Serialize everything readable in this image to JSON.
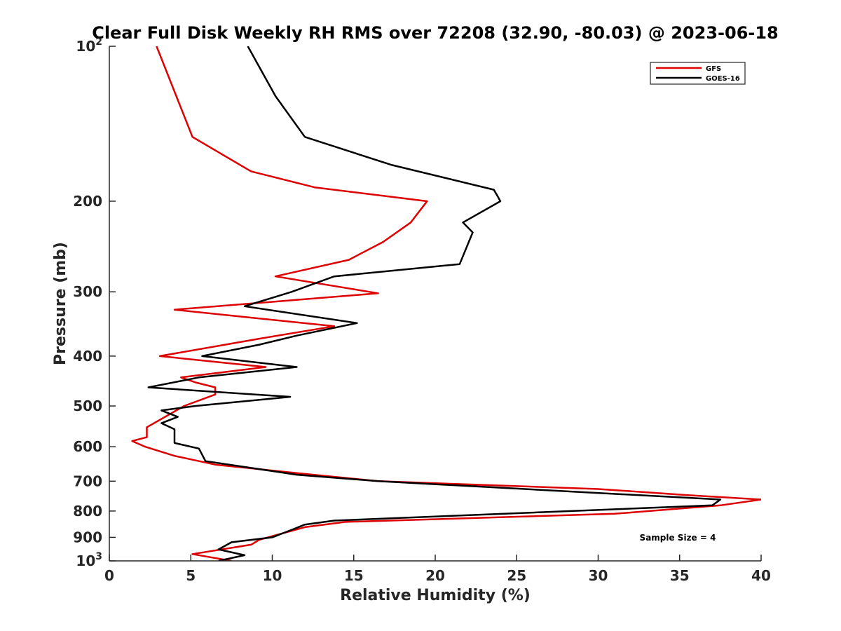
{
  "chart_data": {
    "type": "line",
    "title": "Clear Full Disk Weekly RH RMS over 72208 (32.90, -80.03) @ 2023-06-18",
    "xlabel": "Relative Humidity (%)",
    "ylabel": "Pressure (mb)",
    "xlim": [
      0,
      40
    ],
    "ylim": [
      100,
      1000
    ],
    "y_scale": "log",
    "y_reversed": true,
    "grid": false,
    "legend_placement": "top-right",
    "x_ticks": [
      0,
      5,
      10,
      15,
      20,
      25,
      30,
      35,
      40
    ],
    "x_tick_labels": [
      "0",
      "5",
      "10",
      "15",
      "20",
      "25",
      "30",
      "35",
      "40"
    ],
    "y_ticks": [
      {
        "value": 100,
        "base": "10",
        "exp": "2"
      },
      {
        "value": 200,
        "label": "200"
      },
      {
        "value": 300,
        "label": "300"
      },
      {
        "value": 400,
        "label": "400"
      },
      {
        "value": 500,
        "label": "500"
      },
      {
        "value": 600,
        "label": "600"
      },
      {
        "value": 700,
        "label": "700"
      },
      {
        "value": 800,
        "label": "800"
      },
      {
        "value": 900,
        "label": "900"
      },
      {
        "value": 1000,
        "base": "10",
        "exp": "3"
      }
    ],
    "annotation": "Sample Size = 4",
    "series": [
      {
        "name": "GFS",
        "color": "#dd0000",
        "points": [
          [
            2.9,
            100
          ],
          [
            5.1,
            150
          ],
          [
            8.7,
            175
          ],
          [
            12.6,
            188
          ],
          [
            19.5,
            200
          ],
          [
            18.5,
            220
          ],
          [
            16.8,
            240
          ],
          [
            14.7,
            260
          ],
          [
            10.2,
            280
          ],
          [
            16.5,
            302
          ],
          [
            4.0,
            325
          ],
          [
            13.8,
            350
          ],
          [
            9.2,
            370
          ],
          [
            3.1,
            400
          ],
          [
            9.6,
            420
          ],
          [
            4.4,
            440
          ],
          [
            5.3,
            450
          ],
          [
            6.5,
            460
          ],
          [
            6.5,
            475
          ],
          [
            4.6,
            500
          ],
          [
            2.3,
            550
          ],
          [
            2.3,
            575
          ],
          [
            1.4,
            585
          ],
          [
            2.2,
            600
          ],
          [
            4.0,
            625
          ],
          [
            6.5,
            650
          ],
          [
            11.5,
            675
          ],
          [
            16.5,
            700
          ],
          [
            30.0,
            725
          ],
          [
            35.5,
            745
          ],
          [
            40.0,
            760
          ],
          [
            37.5,
            780
          ],
          [
            31.0,
            810
          ],
          [
            14.5,
            840
          ],
          [
            12.0,
            860
          ],
          [
            9.2,
            910
          ],
          [
            8.7,
            930
          ],
          [
            5.1,
            970
          ],
          [
            7.5,
            1000
          ]
        ]
      },
      {
        "name": "GOES-16",
        "color": "#000000",
        "points": [
          [
            8.5,
            100
          ],
          [
            10.2,
            125
          ],
          [
            12.0,
            150
          ],
          [
            17.3,
            170
          ],
          [
            23.6,
            190
          ],
          [
            24.0,
            200
          ],
          [
            21.7,
            220
          ],
          [
            22.3,
            230
          ],
          [
            21.5,
            265
          ],
          [
            13.8,
            280
          ],
          [
            11.2,
            300
          ],
          [
            8.3,
            320
          ],
          [
            15.2,
            345
          ],
          [
            11.5,
            365
          ],
          [
            9.2,
            380
          ],
          [
            5.7,
            400
          ],
          [
            11.5,
            420
          ],
          [
            5.5,
            440
          ],
          [
            2.4,
            460
          ],
          [
            11.1,
            480
          ],
          [
            5.3,
            500
          ],
          [
            3.2,
            510
          ],
          [
            4.2,
            525
          ],
          [
            3.2,
            540
          ],
          [
            4.0,
            555
          ],
          [
            4.0,
            590
          ],
          [
            5.5,
            605
          ],
          [
            5.9,
            640
          ],
          [
            11.5,
            680
          ],
          [
            16.5,
            700
          ],
          [
            37.5,
            760
          ],
          [
            37.0,
            780
          ],
          [
            13.8,
            835
          ],
          [
            12.0,
            850
          ],
          [
            11.2,
            870
          ],
          [
            10.0,
            900
          ],
          [
            7.5,
            920
          ],
          [
            6.7,
            950
          ],
          [
            8.3,
            975
          ],
          [
            6.7,
            1000
          ]
        ]
      }
    ]
  }
}
